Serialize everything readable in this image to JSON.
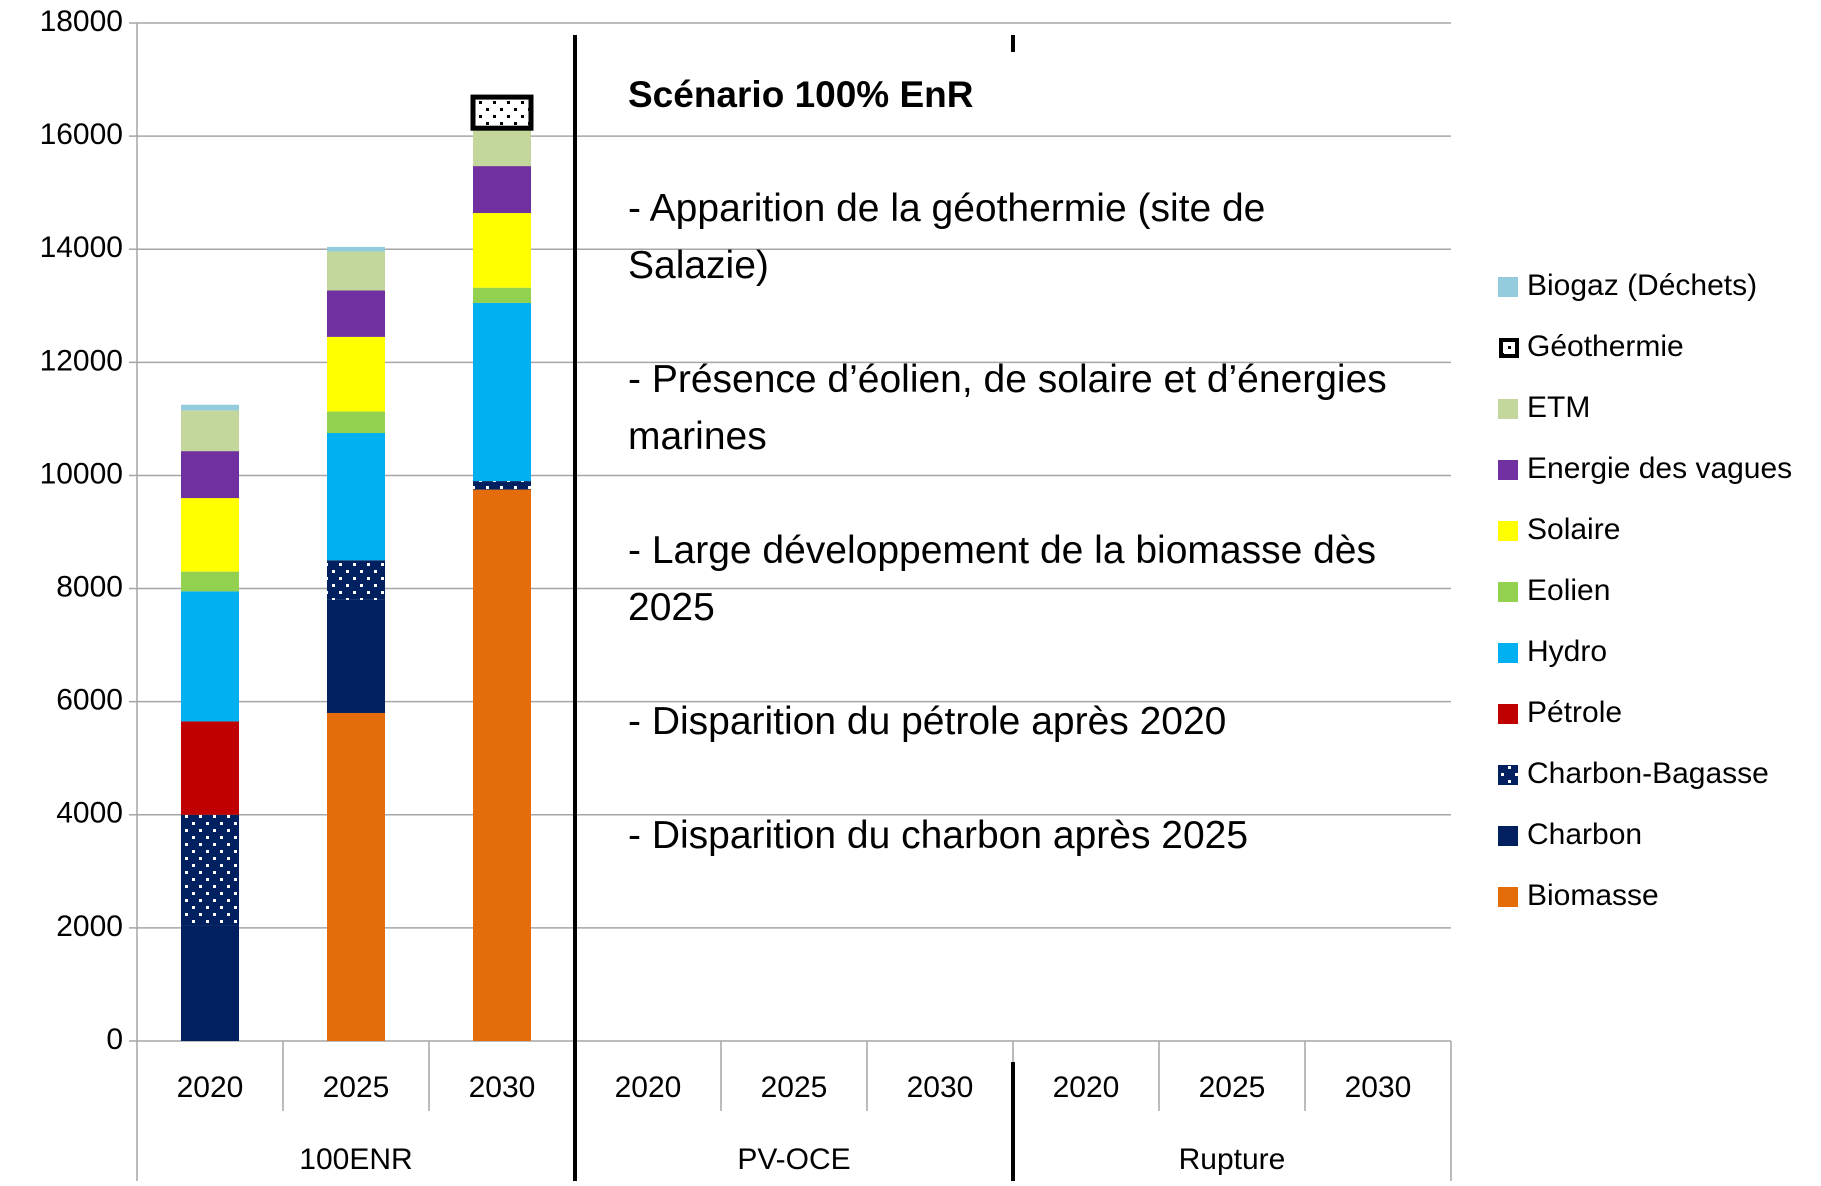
{
  "chart_data": {
    "type": "stacked_bar",
    "groups": [
      "100ENR",
      "PV-OCE",
      "Rupture"
    ],
    "categories": [
      "2020",
      "2025",
      "2030",
      "2020",
      "2025",
      "2030",
      "2020",
      "2025",
      "2030"
    ],
    "ylim": [
      0,
      18000
    ],
    "yticks": [
      0,
      2000,
      4000,
      6000,
      8000,
      10000,
      12000,
      14000,
      16000,
      18000
    ],
    "grid": true,
    "legend": "right",
    "series": [
      {
        "name": "Biomasse",
        "color": "#e46c0a",
        "values": [
          0,
          5800,
          9750,
          null,
          null,
          null,
          null,
          null,
          null
        ]
      },
      {
        "name": "Charbon",
        "color": "#002060",
        "values": [
          2050,
          2000,
          0,
          null,
          null,
          null,
          null,
          null,
          null
        ]
      },
      {
        "name": "Charbon-Bagasse",
        "color": "#002060",
        "hatch": "dots",
        "values": [
          1950,
          700,
          150,
          null,
          null,
          null,
          null,
          null,
          null
        ]
      },
      {
        "name": "Pétrole",
        "color": "#c00000",
        "values": [
          1650,
          0,
          0,
          null,
          null,
          null,
          null,
          null,
          null
        ]
      },
      {
        "name": "Hydro",
        "color": "#00b0f0",
        "values": [
          2300,
          2250,
          3150,
          null,
          null,
          null,
          null,
          null,
          null
        ]
      },
      {
        "name": "Eolien",
        "color": "#92d050",
        "values": [
          350,
          380,
          270,
          null,
          null,
          null,
          null,
          null,
          null
        ]
      },
      {
        "name": "Solaire",
        "color": "#ffff00",
        "values": [
          1300,
          1320,
          1320,
          null,
          null,
          null,
          null,
          null,
          null
        ]
      },
      {
        "name": "Energie des vagues",
        "color": "#7030a0",
        "values": [
          830,
          820,
          830,
          null,
          null,
          null,
          null,
          null,
          null
        ]
      },
      {
        "name": "ETM",
        "color": "#c3d69b",
        "values": [
          720,
          690,
          670,
          null,
          null,
          null,
          null,
          null,
          null
        ]
      },
      {
        "name": "Géothermie",
        "color": "#ffffff",
        "edgecolor": "#000000",
        "hatch": "dots",
        "values": [
          0,
          0,
          550,
          null,
          null,
          null,
          null,
          null,
          null
        ]
      },
      {
        "name": "Biogaz (Déchets)",
        "color": "#93cddd",
        "values": [
          100,
          80,
          0,
          null,
          null,
          null,
          null,
          null,
          null
        ]
      }
    ],
    "annotation": {
      "title": "Scénario 100% EnR",
      "lines": [
        "- Apparition de la géothermie (site de Salazie)",
        "- Présence d’éolien, de solaire et d’énergies marines",
        "- Large développement de la biomasse dès 2025",
        "- Disparition du pétrole après 2020",
        "- Disparition du charbon après 2025"
      ]
    }
  }
}
